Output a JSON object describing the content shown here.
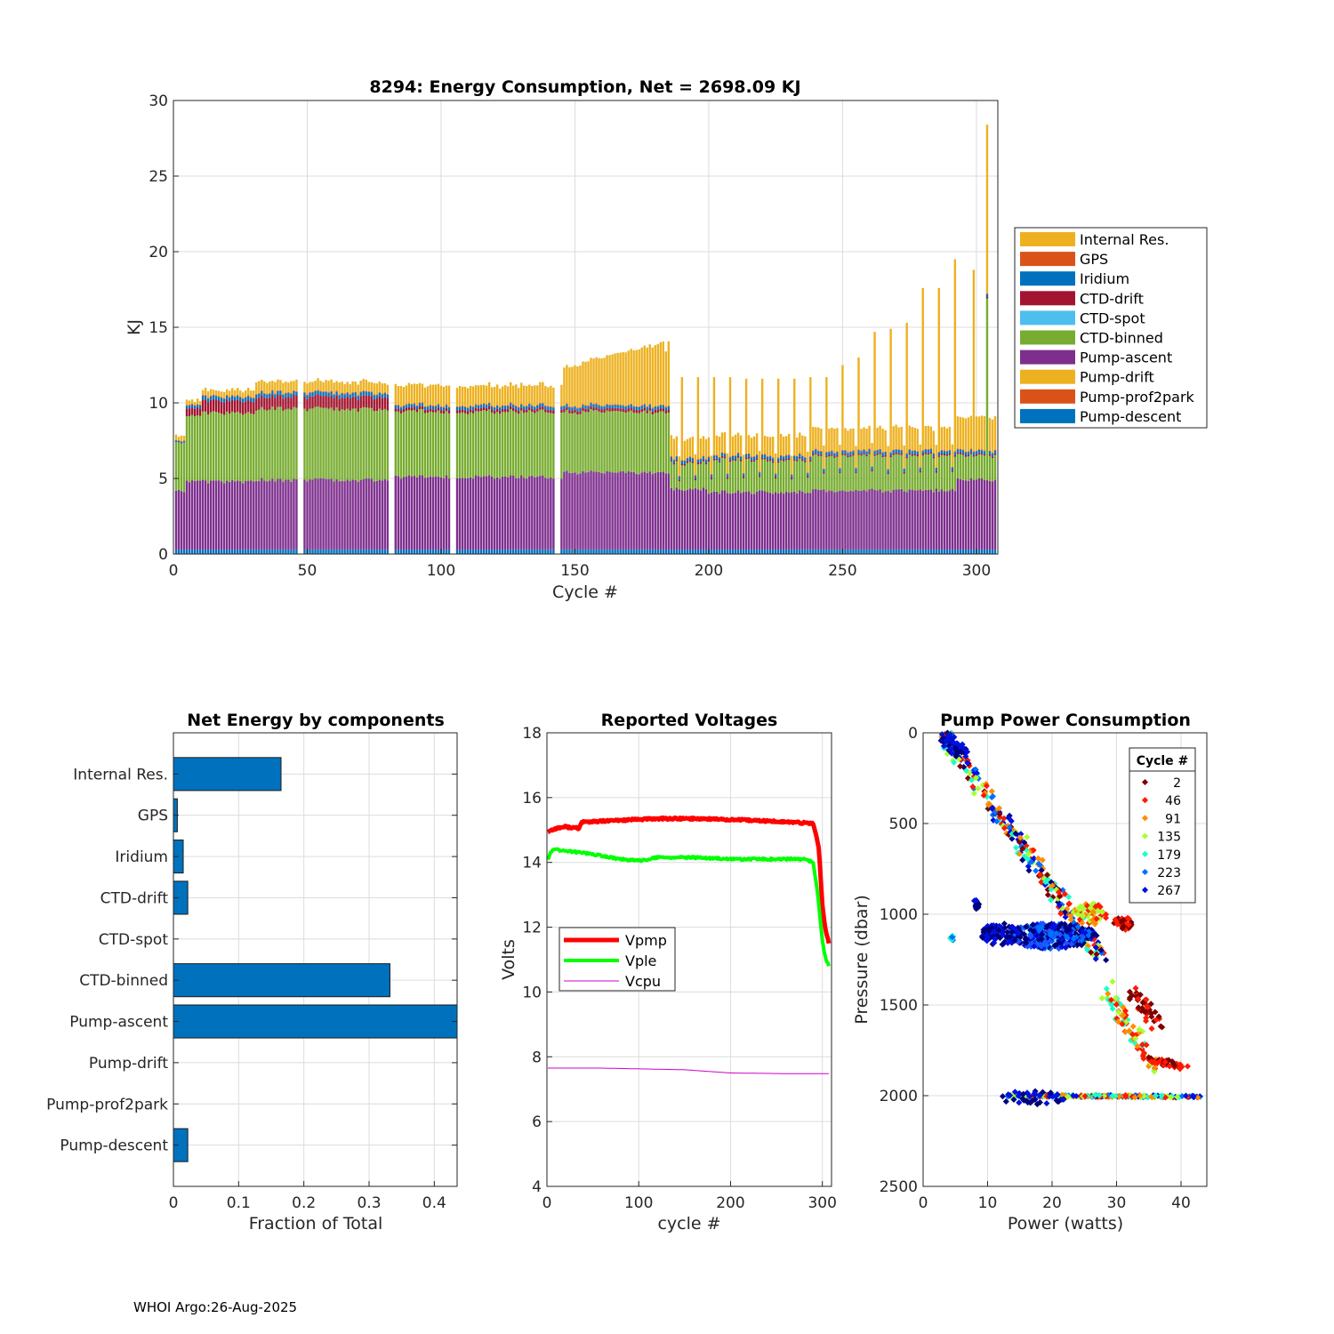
{
  "footer": "WHOI Argo:26-Aug-2025",
  "colors": {
    "internal_res": "#EDB120",
    "gps": "#D95319",
    "iridium": "#0072BD",
    "ctd_drift": "#A2142F",
    "ctd_spot": "#4DBEEE",
    "ctd_binned": "#77AC30",
    "pump_ascent": "#7E2F8E",
    "pump_drift": "#EDB120",
    "pump_prof2park": "#D95319",
    "pump_descent": "#0072BD",
    "vpmp": "#FF0000",
    "vple": "#00FF00",
    "vcpu": "#CC00CC"
  },
  "chart_data": [
    {
      "id": "energy",
      "type": "bar",
      "stacked": true,
      "title": "8294: Energy Consumption,  Net = 2698.09 KJ",
      "xlabel": "Cycle #",
      "ylabel": "KJ",
      "xlim": [
        0,
        308
      ],
      "ylim": [
        0,
        30
      ],
      "xticks": [
        0,
        50,
        100,
        150,
        200,
        250,
        300
      ],
      "yticks": [
        0,
        5,
        10,
        15,
        20,
        25,
        30
      ],
      "grid": true,
      "legend_position": "outside-right",
      "legend": [
        "Internal Res.",
        "GPS",
        "Iridium",
        "CTD-drift",
        "CTD-spot",
        "CTD-binned",
        "Pump-ascent",
        "Pump-drift",
        "Pump-prof2park",
        "Pump-descent"
      ],
      "cycles": "1-307",
      "segments": [
        {
          "from": 1,
          "to": 4,
          "descent": 0.3,
          "ascent": 3.9,
          "binned": 3.2,
          "ctd_drift": 0.0,
          "iridium": 0.1,
          "internal": 0.3
        },
        {
          "from": 5,
          "to": 10,
          "descent": 0.3,
          "ascent": 4.5,
          "binned": 4.3,
          "ctd_drift": 0.5,
          "iridium": 0.2,
          "internal": 0.3
        },
        {
          "from": 11,
          "to": 30,
          "descent": 0.3,
          "ascent": 4.5,
          "binned": 4.5,
          "ctd_drift": 0.8,
          "iridium": 0.25,
          "internal": 0.4
        },
        {
          "from": 31,
          "to": 80,
          "descent": 0.3,
          "ascent": 4.6,
          "binned": 4.7,
          "ctd_drift": 0.8,
          "iridium": 0.25,
          "internal": 0.7
        },
        {
          "from": 81,
          "to": 145,
          "descent": 0.3,
          "ascent": 4.8,
          "binned": 4.3,
          "ctd_drift": 0.2,
          "iridium": 0.2,
          "internal": 1.3
        },
        {
          "from": 146,
          "to": 185,
          "descent": 0.3,
          "ascent": 5.1,
          "binned": 4.0,
          "ctd_drift": 0.2,
          "iridium": 0.2,
          "internal": 2.5
        },
        {
          "from": 186,
          "to": 199,
          "descent": 0.3,
          "ascent": 4.0,
          "binned": 1.7,
          "ctd_drift": 0.1,
          "iridium": 0.2,
          "internal": 1.3
        },
        {
          "from": 200,
          "to": 238,
          "descent": 0.3,
          "ascent": 3.8,
          "binned": 2.1,
          "ctd_drift": 0.1,
          "iridium": 0.2,
          "internal": 1.3
        },
        {
          "from": 239,
          "to": 292,
          "descent": 0.3,
          "ascent": 3.9,
          "binned": 2.3,
          "ctd_drift": 0.1,
          "iridium": 0.2,
          "internal": 1.5
        },
        {
          "from": 293,
          "to": 307,
          "descent": 0.3,
          "ascent": 4.6,
          "binned": 1.6,
          "ctd_drift": 0.1,
          "iridium": 0.2,
          "internal": 2.2
        }
      ],
      "spikes": [
        {
          "cycle": 184,
          "total": 13.4
        },
        {
          "cycle": 190,
          "total": 11.7
        },
        {
          "cycle": 196,
          "total": 11.7
        },
        {
          "cycle": 202,
          "total": 11.7
        },
        {
          "cycle": 208,
          "total": 11.7
        },
        {
          "cycle": 214,
          "total": 11.6
        },
        {
          "cycle": 220,
          "total": 11.6
        },
        {
          "cycle": 226,
          "total": 11.6
        },
        {
          "cycle": 232,
          "total": 11.6
        },
        {
          "cycle": 238,
          "total": 11.7
        },
        {
          "cycle": 244,
          "total": 11.7
        },
        {
          "cycle": 250,
          "total": 12.5
        },
        {
          "cycle": 256,
          "total": 13.0
        },
        {
          "cycle": 262,
          "total": 14.7
        },
        {
          "cycle": 268,
          "total": 14.9
        },
        {
          "cycle": 274,
          "total": 15.3
        },
        {
          "cycle": 280,
          "total": 17.6
        },
        {
          "cycle": 286,
          "total": 17.6
        },
        {
          "cycle": 292,
          "total": 19.5
        },
        {
          "cycle": 299,
          "total": 18.8
        },
        {
          "cycle": 304,
          "total": 28.4
        }
      ]
    },
    {
      "id": "components",
      "type": "bar",
      "orientation": "horizontal",
      "title": "Net Energy by components",
      "xlabel": "Fraction of Total",
      "xlim": [
        0,
        0.435
      ],
      "xticks": [
        0,
        0.1,
        0.2,
        0.3,
        0.4
      ],
      "xtick_labels": [
        "0",
        "0.1",
        "0.2",
        "0.3",
        "0.4"
      ],
      "grid": true,
      "categories": [
        "Internal Res.",
        "GPS",
        "Iridium",
        "CTD-drift",
        "CTD-spot",
        "CTD-binned",
        "Pump-ascent",
        "Pump-drift",
        "Pump-prof2park",
        "Pump-descent"
      ],
      "values": [
        0.165,
        0.006,
        0.015,
        0.022,
        0.0,
        0.332,
        0.438,
        0.0,
        0.0,
        0.022
      ]
    },
    {
      "id": "voltages",
      "type": "line",
      "title": "Reported Voltages",
      "xlabel": "cycle #",
      "ylabel": "Volts",
      "xlim": [
        0,
        310
      ],
      "ylim": [
        4,
        18
      ],
      "xticks": [
        0,
        100,
        200,
        300
      ],
      "yticks": [
        4,
        6,
        8,
        10,
        12,
        14,
        16,
        18
      ],
      "grid": true,
      "legend_position": "center-left",
      "series": [
        {
          "name": "Vpmp",
          "x": [
            1,
            10,
            20,
            35,
            38,
            45,
            80,
            120,
            170,
            220,
            260,
            290,
            296,
            300,
            303,
            307
          ],
          "y": [
            14.95,
            15.05,
            15.1,
            15.05,
            15.25,
            15.25,
            15.3,
            15.35,
            15.35,
            15.3,
            15.25,
            15.2,
            14.5,
            12.7,
            12.0,
            11.5
          ],
          "width": 5
        },
        {
          "name": "Vple",
          "x": [
            1,
            5,
            10,
            20,
            40,
            60,
            80,
            100,
            120,
            160,
            200,
            240,
            280,
            290,
            295,
            300,
            303,
            307
          ],
          "y": [
            14.1,
            14.35,
            14.4,
            14.35,
            14.3,
            14.2,
            14.1,
            14.05,
            14.15,
            14.15,
            14.1,
            14.1,
            14.1,
            14.0,
            13.0,
            11.6,
            11.1,
            10.8
          ],
          "width": 4
        },
        {
          "name": "Vcpu",
          "x": [
            1,
            20,
            60,
            150,
            200,
            260,
            307
          ],
          "y": [
            7.65,
            7.65,
            7.65,
            7.6,
            7.5,
            7.48,
            7.48
          ],
          "width": 1
        }
      ]
    },
    {
      "id": "pump",
      "type": "scatter",
      "title": "Pump Power Consumption",
      "xlabel": "Power (watts)",
      "ylabel": "Pressure (dbar)",
      "xlim": [
        0,
        44
      ],
      "ylim": [
        0,
        2500
      ],
      "y_reversed": true,
      "xticks": [
        0,
        10,
        20,
        30,
        40
      ],
      "yticks": [
        0,
        500,
        1000,
        1500,
        2000,
        2500
      ],
      "grid": true,
      "legend_title": "Cycle #",
      "legend_position": "top-right",
      "legend": [
        {
          "label": "2",
          "color": "#7F0000"
        },
        {
          "label": "46",
          "color": "#FF1A00"
        },
        {
          "label": "91",
          "color": "#FF8C00"
        },
        {
          "label": "135",
          "color": "#A8FF30"
        },
        {
          "label": "179",
          "color": "#1AFFC8"
        },
        {
          "label": "223",
          "color": "#0070FF"
        },
        {
          "label": "267",
          "color": "#0010E0"
        }
      ],
      "groups": [
        {
          "kind": "line",
          "x": [
            3,
            28
          ],
          "y": [
            0,
            1260
          ],
          "spread": [
            1.2,
            30
          ],
          "n": 260,
          "colors": [
            "#00007F",
            "#0010E0",
            "#0070FF",
            "#1AFFC8",
            "#A8FF30",
            "#FF8C00",
            "#FF1A00",
            "#7F0000"
          ]
        },
        {
          "kind": "line",
          "x": [
            3,
            6
          ],
          "y": [
            0,
            120
          ],
          "spread": [
            1.2,
            25
          ],
          "n": 60,
          "colors": [
            "#00007F",
            "#0010E0"
          ]
        },
        {
          "kind": "blob",
          "cx": 20,
          "cy": 1120,
          "rx": 7,
          "ry": 70,
          "n": 320,
          "colors": [
            "#00007F",
            "#00007F",
            "#0010E0",
            "#0070FF",
            "#2050FF"
          ]
        },
        {
          "kind": "blob",
          "cx": 12,
          "cy": 1110,
          "rx": 3,
          "ry": 60,
          "n": 80,
          "colors": [
            "#00007F",
            "#0010E0"
          ]
        },
        {
          "kind": "blob",
          "cx": 26,
          "cy": 1000,
          "rx": 2.5,
          "ry": 60,
          "n": 60,
          "colors": [
            "#FF8C00",
            "#FF1A00",
            "#A8FF30"
          ]
        },
        {
          "kind": "blob",
          "cx": 31,
          "cy": 1050,
          "rx": 1.5,
          "ry": 40,
          "n": 30,
          "colors": [
            "#FF1A00",
            "#7F0000"
          ]
        },
        {
          "kind": "line",
          "x": [
            28.5,
            36
          ],
          "y": [
            1420,
            1870
          ],
          "spread": [
            1.0,
            50
          ],
          "n": 80,
          "colors": [
            "#1AFFC8",
            "#A8FF30",
            "#FF8C00",
            "#FF1A00"
          ]
        },
        {
          "kind": "line",
          "x": [
            32,
            36.5
          ],
          "y": [
            1400,
            1620
          ],
          "spread": [
            1.0,
            30
          ],
          "n": 40,
          "colors": [
            "#FF1A00",
            "#7F0000"
          ]
        },
        {
          "kind": "line",
          "x": [
            35,
            40.5
          ],
          "y": [
            1800,
            1840
          ],
          "spread": [
            0.8,
            15
          ],
          "n": 40,
          "colors": [
            "#FF1A00",
            "#7F0000"
          ]
        },
        {
          "kind": "line",
          "x": [
            13,
            43
          ],
          "y": [
            2000,
            2005
          ],
          "spread": [
            0.2,
            6
          ],
          "n": 240,
          "colors": [
            "#0070FF",
            "#1AFFC8",
            "#A8FF30",
            "#FF8C00",
            "#FF1A00",
            "#0010E0"
          ]
        },
        {
          "kind": "blob",
          "cx": 17,
          "cy": 2010,
          "rx": 5,
          "ry": 40,
          "n": 45,
          "colors": [
            "#00007F",
            "#0010E0"
          ]
        },
        {
          "kind": "blob",
          "cx": 8.2,
          "cy": 950,
          "rx": 0.5,
          "ry": 30,
          "n": 14,
          "colors": [
            "#0010E0",
            "#00007F"
          ]
        },
        {
          "kind": "blob",
          "cx": 4.5,
          "cy": 1130,
          "rx": 0.3,
          "ry": 20,
          "n": 8,
          "colors": [
            "#1AFFC8",
            "#0070FF"
          ]
        }
      ]
    }
  ]
}
